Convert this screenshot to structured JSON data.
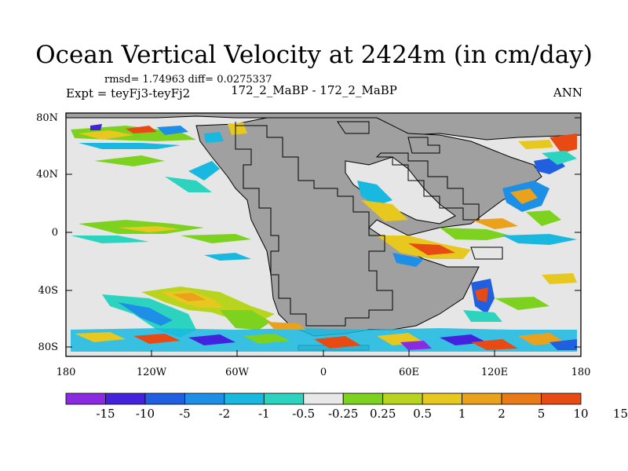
{
  "title": "Ocean Vertical Velocity at 2424m (in cm/day)",
  "stats_line": "rmsd= 1.74963 diff= 0.0275337",
  "expt_line": "Expt = teyFj3-teyFj2",
  "center_label": "172_2_MaBP - 172_2_MaBP",
  "season_label": "ANN",
  "map": {
    "lat_ticks": [
      "80N",
      "40N",
      "0",
      "40S",
      "80S"
    ],
    "lon_ticks": [
      "180",
      "120W",
      "60W",
      "0",
      "60E",
      "120E",
      "180"
    ],
    "land_color": "#a0a0a0",
    "ocean_neutral_color": "#e6e6e6"
  },
  "colorbar": {
    "colors": [
      "#8a2be2",
      "#4422dd",
      "#1f5fe0",
      "#1e8fe6",
      "#18b8e0",
      "#2cd4c0",
      "#e8e8e8",
      "#7cd21e",
      "#b8d41e",
      "#e6c81e",
      "#eaa11c",
      "#ea7a18",
      "#e84a14"
    ],
    "labels": [
      "-15",
      "-10",
      "-5",
      "-2",
      "-1",
      "-0.5",
      "-0.25",
      "0.25",
      "0.5",
      "1",
      "2",
      "5",
      "10",
      "15"
    ]
  }
}
